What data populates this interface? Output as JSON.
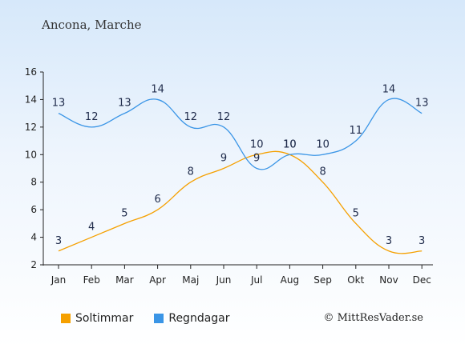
{
  "header": {
    "subtitle": "Ancona, Marche"
  },
  "footer": {
    "copyright": "© MittResVader.se"
  },
  "colors": {
    "sun": "#f5a000",
    "rain": "#3a95e6",
    "axis": "#222222"
  },
  "chart_data": {
    "type": "line",
    "title": "",
    "subtitle": "Ancona, Marche",
    "xlabel": "",
    "ylabel": "",
    "categories": [
      "Jan",
      "Feb",
      "Mar",
      "Apr",
      "Maj",
      "Jun",
      "Jul",
      "Aug",
      "Sep",
      "Okt",
      "Nov",
      "Dec"
    ],
    "ylim": [
      2,
      16
    ],
    "yticks": [
      2,
      4,
      6,
      8,
      10,
      12,
      14,
      16
    ],
    "grid": false,
    "legend_position": "bottom-left",
    "series": [
      {
        "name": "Soltimmar",
        "color": "#f5a000",
        "values": [
          3,
          4,
          5,
          6,
          8,
          9,
          10,
          10,
          8,
          5,
          3,
          3
        ]
      },
      {
        "name": "Regndagar",
        "color": "#3a95e6",
        "values": [
          13,
          12,
          13,
          14,
          12,
          12,
          9,
          10,
          10,
          11,
          14,
          13
        ]
      }
    ]
  }
}
